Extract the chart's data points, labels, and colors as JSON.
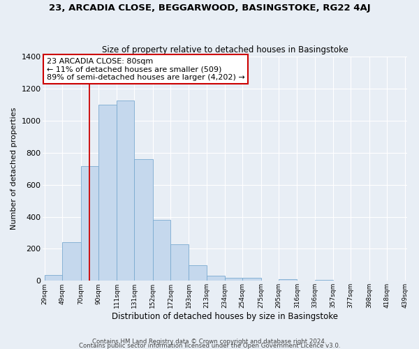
{
  "title1": "23, ARCADIA CLOSE, BEGGARWOOD, BASINGSTOKE, RG22 4AJ",
  "title2": "Size of property relative to detached houses in Basingstoke",
  "xlabel": "Distribution of detached houses by size in Basingstoke",
  "ylabel": "Number of detached properties",
  "bin_labels": [
    "29sqm",
    "49sqm",
    "70sqm",
    "90sqm",
    "111sqm",
    "131sqm",
    "152sqm",
    "172sqm",
    "193sqm",
    "213sqm",
    "234sqm",
    "254sqm",
    "275sqm",
    "295sqm",
    "316sqm",
    "336sqm",
    "357sqm",
    "377sqm",
    "398sqm",
    "418sqm",
    "439sqm"
  ],
  "bin_edges": [
    29,
    49,
    70,
    90,
    111,
    131,
    152,
    172,
    193,
    213,
    234,
    254,
    275,
    295,
    316,
    336,
    357,
    377,
    398,
    418,
    439
  ],
  "bar_heights": [
    35,
    240,
    715,
    1100,
    1125,
    760,
    380,
    230,
    95,
    30,
    20,
    20,
    0,
    10,
    0,
    5,
    0,
    0,
    0,
    0
  ],
  "bar_color": "#c5d8ed",
  "bar_edgecolor": "#7aaad0",
  "vline_x": 80,
  "vline_color": "#cc0000",
  "annotation_line1": "23 ARCADIA CLOSE: 80sqm",
  "annotation_line2": "← 11% of detached houses are smaller (509)",
  "annotation_line3": "89% of semi-detached houses are larger (4,202) →",
  "annotation_box_color": "#cc0000",
  "ylim": [
    0,
    1400
  ],
  "yticks": [
    0,
    200,
    400,
    600,
    800,
    1000,
    1200,
    1400
  ],
  "footer1": "Contains HM Land Registry data © Crown copyright and database right 2024.",
  "footer2": "Contains public sector information licensed under the Open Government Licence v3.0.",
  "bg_color": "#e8eef5",
  "plot_bg_color": "#e8eef5",
  "grid_color": "#ffffff"
}
